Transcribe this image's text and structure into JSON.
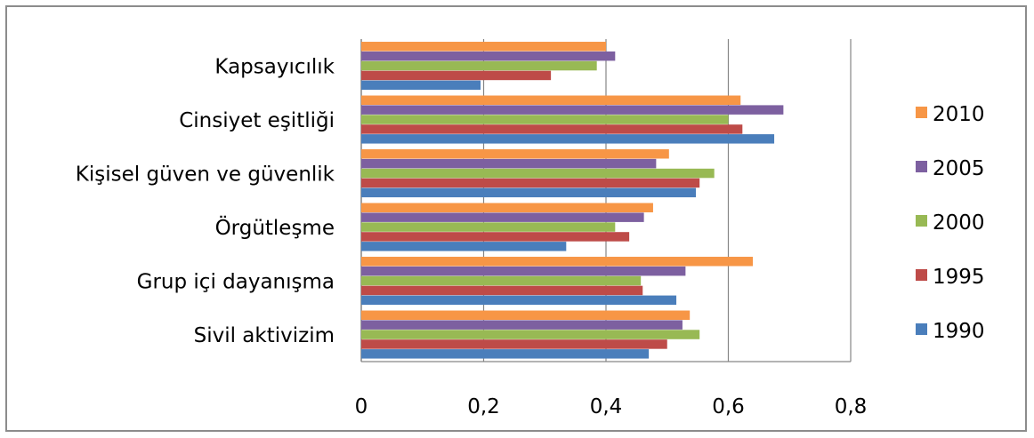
{
  "chart_data": {
    "type": "bar",
    "orientation": "horizontal",
    "categories": [
      "Sivil aktivizim",
      "Grup içi dayanışma",
      "Örgütleşme",
      "Kişisel güven ve güvenlik",
      "Cinsiyet eşitliği",
      "Kapsayıcılık"
    ],
    "series": [
      {
        "name": "1990",
        "color": "#4a7ebb",
        "values": [
          0.47,
          0.515,
          0.335,
          0.547,
          0.675,
          0.195
        ]
      },
      {
        "name": "1995",
        "color": "#be4b48",
        "values": [
          0.5,
          0.46,
          0.438,
          0.553,
          0.623,
          0.31
        ]
      },
      {
        "name": "2000",
        "color": "#98b954",
        "values": [
          0.553,
          0.457,
          0.415,
          0.577,
          0.6,
          0.385
        ]
      },
      {
        "name": "2005",
        "color": "#7d60a0",
        "values": [
          0.525,
          0.53,
          0.462,
          0.482,
          0.69,
          0.415
        ]
      },
      {
        "name": "2010",
        "color": "#f79646",
        "values": [
          0.537,
          0.64,
          0.477,
          0.503,
          0.62,
          0.4
        ]
      }
    ],
    "xlim": [
      0,
      0.8
    ],
    "xticks": [
      "0",
      "0,2",
      "0,4",
      "0,6",
      "0,8"
    ],
    "grid": true,
    "legend_position": "right",
    "legend_order": [
      "2010",
      "2005",
      "2000",
      "1995",
      "1990"
    ]
  }
}
